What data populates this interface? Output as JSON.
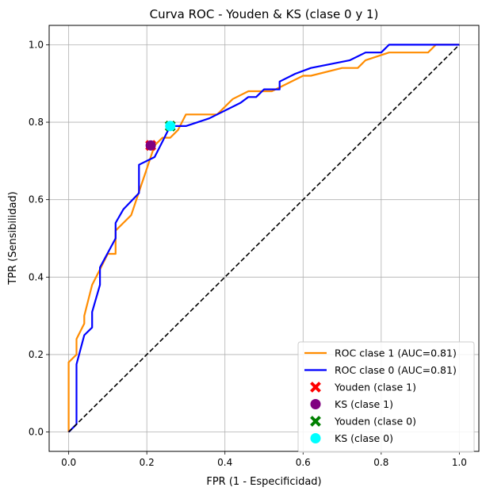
{
  "chart_data": {
    "type": "line",
    "title": "Curva ROC - Youden & KS (clase 0 y 1)",
    "xlabel": "FPR (1 - Especificidad)",
    "ylabel": "TPR (Sensibilidad)",
    "xlim": [
      -0.05,
      1.05
    ],
    "ylim": [
      -0.05,
      1.05
    ],
    "xticks": [
      "0.0",
      "0.2",
      "0.4",
      "0.6",
      "0.8",
      "1.0"
    ],
    "yticks": [
      "0.0",
      "0.2",
      "0.4",
      "0.6",
      "0.8",
      "1.0"
    ],
    "grid": true,
    "legend_position": "lower-right",
    "series": [
      {
        "name": "ROC clase 1 (AUC=0.81)",
        "color": "#ff8c00",
        "style": "solid",
        "points": [
          [
            0,
            0
          ],
          [
            0,
            0.06
          ],
          [
            0,
            0.18
          ],
          [
            0.02,
            0.2
          ],
          [
            0.02,
            0.24
          ],
          [
            0.04,
            0.28
          ],
          [
            0.04,
            0.3
          ],
          [
            0.06,
            0.38
          ],
          [
            0.08,
            0.42
          ],
          [
            0.1,
            0.46
          ],
          [
            0.12,
            0.46
          ],
          [
            0.12,
            0.52
          ],
          [
            0.14,
            0.54
          ],
          [
            0.16,
            0.56
          ],
          [
            0.18,
            0.62
          ],
          [
            0.2,
            0.68
          ],
          [
            0.22,
            0.74
          ],
          [
            0.24,
            0.76
          ],
          [
            0.26,
            0.76
          ],
          [
            0.28,
            0.78
          ],
          [
            0.3,
            0.82
          ],
          [
            0.38,
            0.82
          ],
          [
            0.42,
            0.86
          ],
          [
            0.46,
            0.88
          ],
          [
            0.52,
            0.88
          ],
          [
            0.6,
            0.92
          ],
          [
            0.62,
            0.92
          ],
          [
            0.7,
            0.94
          ],
          [
            0.74,
            0.94
          ],
          [
            0.76,
            0.96
          ],
          [
            0.82,
            0.98
          ],
          [
            0.92,
            0.98
          ],
          [
            0.94,
            1.0
          ],
          [
            1.0,
            1.0
          ]
        ]
      },
      {
        "name": "ROC clase 0 (AUC=0.81)",
        "color": "#0000ff",
        "style": "solid",
        "points": [
          [
            0,
            0
          ],
          [
            0.02,
            0.02
          ],
          [
            0.02,
            0.075
          ],
          [
            0.02,
            0.175
          ],
          [
            0.04,
            0.25
          ],
          [
            0.06,
            0.27
          ],
          [
            0.06,
            0.31
          ],
          [
            0.08,
            0.38
          ],
          [
            0.08,
            0.425
          ],
          [
            0.12,
            0.5
          ],
          [
            0.12,
            0.54
          ],
          [
            0.14,
            0.575
          ],
          [
            0.18,
            0.617
          ],
          [
            0.18,
            0.69
          ],
          [
            0.22,
            0.71
          ],
          [
            0.24,
            0.75
          ],
          [
            0.26,
            0.79
          ],
          [
            0.3,
            0.79
          ],
          [
            0.36,
            0.81
          ],
          [
            0.44,
            0.85
          ],
          [
            0.46,
            0.865
          ],
          [
            0.48,
            0.865
          ],
          [
            0.5,
            0.885
          ],
          [
            0.54,
            0.885
          ],
          [
            0.54,
            0.905
          ],
          [
            0.58,
            0.925
          ],
          [
            0.62,
            0.94
          ],
          [
            0.72,
            0.96
          ],
          [
            0.76,
            0.98
          ],
          [
            0.8,
            0.98
          ],
          [
            0.82,
            1.0
          ],
          [
            1.0,
            1.0
          ]
        ]
      },
      {
        "name": "",
        "color": "#000000",
        "style": "dashed",
        "points": [
          [
            0,
            0
          ],
          [
            1,
            1
          ]
        ]
      }
    ],
    "markers": [
      {
        "name": "Youden (clase 1)",
        "shape": "x",
        "color": "#ff0000",
        "point": [
          0.21,
          0.74
        ]
      },
      {
        "name": "KS (clase 1)",
        "shape": "circle",
        "color": "#800080",
        "point": [
          0.21,
          0.74
        ]
      },
      {
        "name": "Youden (clase 0)",
        "shape": "x",
        "color": "#008000",
        "point": [
          0.26,
          0.79
        ]
      },
      {
        "name": "KS (clase 0)",
        "shape": "circle",
        "color": "#00ffff",
        "point": [
          0.26,
          0.79
        ]
      }
    ]
  }
}
